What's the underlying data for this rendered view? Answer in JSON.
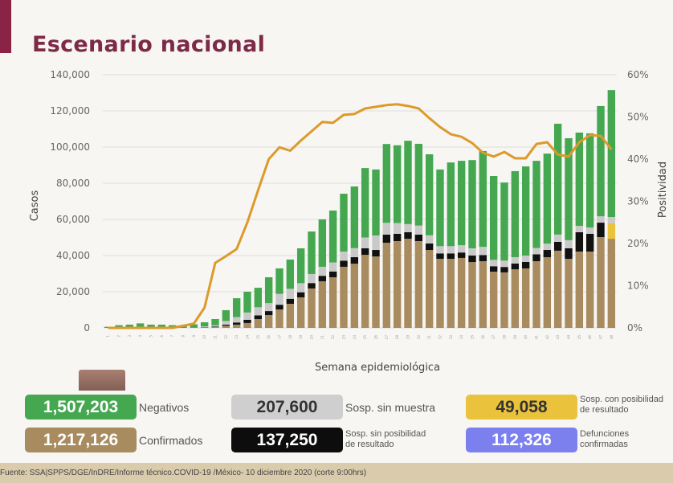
{
  "header": {
    "title": "Escenario nacional"
  },
  "colors": {
    "negativos": "#45a851",
    "confirmados": "#a88b5f",
    "sin_muestra": "#c9c9c9",
    "sin_posibilidad": "#111111",
    "con_posibilidad": "#eac23c",
    "defunciones": "#7c80ef",
    "positividad": "#dd9a2a",
    "accent": "#7d2a47"
  },
  "chart_data": {
    "type": "bar",
    "stacked": true,
    "xlabel": "Semana epidemiológica",
    "ylabel": "Casos",
    "y2label": "Positividad",
    "ylim": [
      0,
      140000
    ],
    "y2lim": [
      0,
      60
    ],
    "yticks": [
      "0",
      "20,000",
      "40,000",
      "60,000",
      "80,000",
      "100,000",
      "120,000",
      "140,000"
    ],
    "y2ticks": [
      "0%",
      "10%",
      "20%",
      "30%",
      "40%",
      "50%",
      "60%"
    ],
    "grid": true,
    "categories": [
      1,
      2,
      3,
      4,
      5,
      6,
      7,
      8,
      9,
      10,
      11,
      12,
      13,
      14,
      15,
      16,
      17,
      18,
      19,
      20,
      21,
      22,
      23,
      24,
      25,
      26,
      27,
      28,
      29,
      30,
      31,
      32,
      33,
      34,
      35,
      36,
      37,
      38,
      39,
      40,
      41,
      42,
      43,
      44,
      45,
      46,
      47,
      48
    ],
    "series": [
      {
        "key": "confirmados",
        "values": [
          0,
          0,
          0,
          0,
          0,
          0,
          0,
          0,
          100,
          300,
          500,
          1200,
          1800,
          2700,
          4900,
          7100,
          10200,
          13300,
          16900,
          21800,
          25800,
          28000,
          33800,
          35500,
          40400,
          39500,
          47100,
          48000,
          49300,
          48000,
          43100,
          38200,
          38200,
          38700,
          36400,
          36900,
          31100,
          30700,
          32400,
          32900,
          36900,
          39100,
          42700,
          38200,
          42200,
          42200,
          50200,
          49300
        ]
      },
      {
        "key": "sin_posibilidad",
        "values": [
          0,
          0,
          0,
          0,
          0,
          0,
          0,
          0,
          0,
          100,
          300,
          600,
          1200,
          1800,
          2000,
          2200,
          2600,
          2800,
          2800,
          3000,
          3000,
          3200,
          3400,
          3600,
          3600,
          3600,
          4500,
          4000,
          3600,
          3600,
          3600,
          3000,
          3000,
          3000,
          3600,
          3400,
          3000,
          3000,
          3200,
          3600,
          3800,
          4000,
          4900,
          5800,
          10700,
          9800,
          8000,
          0
        ]
      },
      {
        "key": "con_posibilidad",
        "values": [
          0,
          0,
          0,
          0,
          0,
          0,
          0,
          0,
          0,
          0,
          0,
          0,
          0,
          0,
          0,
          0,
          0,
          0,
          0,
          0,
          0,
          0,
          0,
          0,
          0,
          0,
          0,
          0,
          0,
          0,
          0,
          0,
          0,
          0,
          0,
          0,
          0,
          0,
          0,
          0,
          0,
          0,
          0,
          0,
          0,
          0,
          0,
          8500
        ]
      },
      {
        "key": "sin_muestra",
        "values": [
          0,
          0,
          0,
          0,
          0,
          0,
          0,
          0,
          0,
          400,
          600,
          2000,
          3000,
          4000,
          4500,
          4400,
          6000,
          5500,
          5000,
          5000,
          5000,
          5000,
          5000,
          5000,
          6000,
          8000,
          6500,
          6000,
          4500,
          5000,
          4500,
          4000,
          4000,
          4000,
          4000,
          4500,
          3500,
          3500,
          3500,
          3500,
          3500,
          3500,
          4000,
          4500,
          3500,
          3500,
          3500,
          3500
        ]
      },
      {
        "key": "negativos",
        "values": [
          600,
          1500,
          1800,
          2500,
          1800,
          1800,
          1500,
          1500,
          1900,
          2300,
          3500,
          6000,
          10400,
          11500,
          10800,
          14300,
          14100,
          16200,
          19300,
          23500,
          26200,
          28700,
          32000,
          34100,
          38400,
          36500,
          43600,
          43000,
          46100,
          45200,
          44800,
          42400,
          46300,
          46700,
          48800,
          53000,
          46400,
          43200,
          47600,
          49300,
          48200,
          49800,
          61300,
          56400,
          51600,
          52100,
          61000,
          70200
        ]
      }
    ],
    "line": {
      "key": "positividad",
      "axis": "right",
      "values": [
        0,
        0,
        0,
        0,
        0,
        0,
        0,
        0.5,
        1,
        4.8,
        15.4,
        17,
        18.7,
        25,
        32.6,
        40,
        42.8,
        42,
        44.4,
        46.6,
        48.8,
        48.6,
        50.5,
        50.7,
        52,
        52.4,
        52.8,
        53,
        52.6,
        52,
        49.7,
        47.6,
        45.9,
        45.3,
        43.8,
        41.5,
        40.6,
        41.7,
        40.2,
        40.2,
        43.6,
        44,
        41.1,
        40.6,
        44,
        45.7,
        45.5,
        42.3
      ]
    }
  },
  "summary": {
    "negativos": {
      "value": "1,507,203",
      "label": "Negativos"
    },
    "confirmados": {
      "value": "1,217,126",
      "label": "Confirmados"
    },
    "sin_muestra": {
      "value": "207,600",
      "label": "Sosp. sin muestra"
    },
    "sin_posibilidad": {
      "value": "137,250",
      "label1": "Sosp. sin posibilidad",
      "label2": "de resultado"
    },
    "con_posibilidad": {
      "value": "49,058",
      "label1": "Sosp. con posibilidad",
      "label2": "de resultado"
    },
    "defunciones": {
      "value": "112,326",
      "label1": "Defunciones",
      "label2": "confirmadas"
    }
  },
  "footer": {
    "source": "Fuente: SSA|SPPS/DGE/InDRE/Informe técnico.COVID-19 /México- 10 diciembre 2020 (corte 9:00hrs)"
  }
}
